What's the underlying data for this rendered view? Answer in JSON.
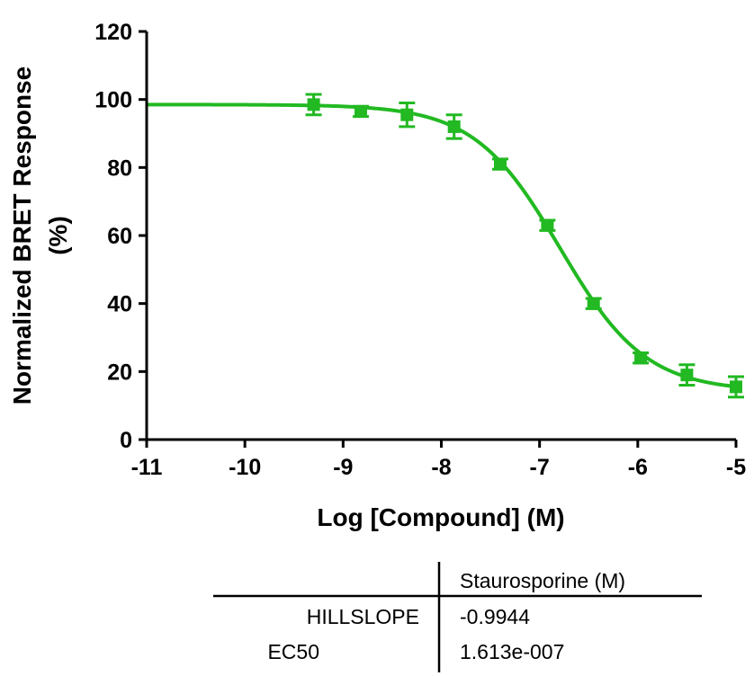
{
  "chart_data": {
    "type": "scatter",
    "xlabel": "Log [Compound] (M)",
    "ylabel_line1": "Normalized BRET Response",
    "ylabel_line2": "(%)",
    "xlim": [
      -11,
      -5
    ],
    "ylim": [
      0,
      120
    ],
    "x_ticks": [
      -11,
      -10,
      -9,
      -8,
      -7,
      -6,
      -5
    ],
    "y_ticks": [
      0,
      20,
      40,
      60,
      80,
      100,
      120
    ],
    "grid": false,
    "series": [
      {
        "color": "#22b922",
        "x": [
          -9.3,
          -8.82,
          -8.35,
          -7.87,
          -7.4,
          -6.92,
          -6.45,
          -5.97,
          -5.5,
          -5.0
        ],
        "y": [
          98.5,
          96.5,
          95.5,
          92.0,
          81.0,
          63.0,
          40.0,
          24.0,
          19.0,
          15.5
        ],
        "error": [
          3.0,
          1.5,
          3.5,
          3.5,
          1.5,
          1.5,
          1.5,
          1.5,
          3.0,
          3.0
        ],
        "fit": {
          "model": "four-parameter logistic",
          "top": 98.5,
          "bottom": 14.2,
          "logEC50": -6.7925,
          "hillslope": -0.9944
        }
      }
    ]
  },
  "table": {
    "column_header": "Staurosporine (M)",
    "rows": [
      {
        "label": "HILLSLOPE",
        "value": "-0.9944"
      },
      {
        "label": "EC50",
        "value": "1.613e-007"
      }
    ]
  }
}
